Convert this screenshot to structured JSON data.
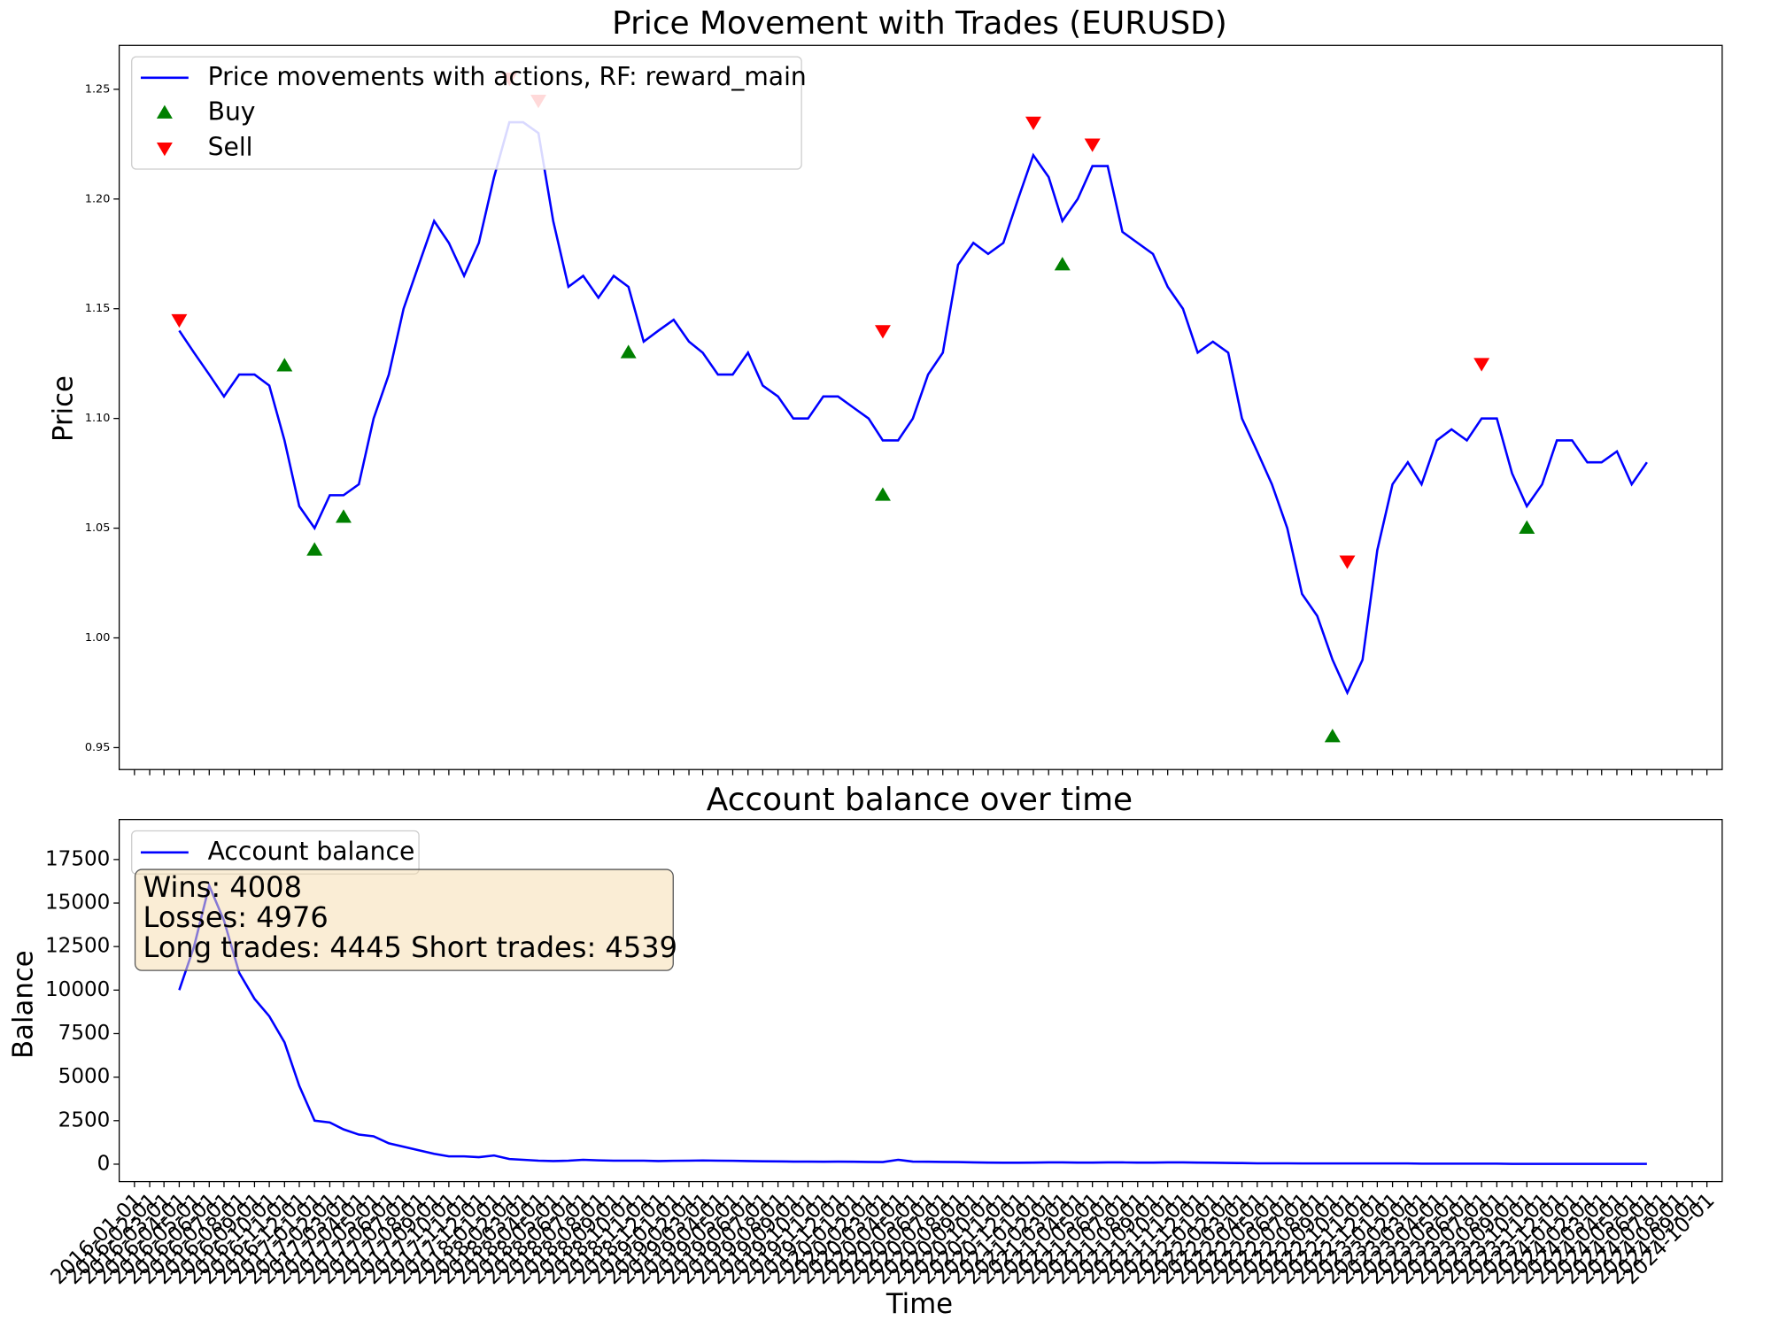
{
  "chart_data": [
    {
      "type": "line",
      "title": "Price Movement with Trades (EURUSD)",
      "ylabel": "Price",
      "legend": "upper left",
      "xlim": [
        "2015-12-01",
        "2024-11-01"
      ],
      "ylim": [
        0.94,
        1.27
      ],
      "yticks": [
        0.95,
        {
          "value": 1,
          "label": "1.00"
        },
        1.05,
        {
          "value": 1.1,
          "label": "1.10"
        },
        1.15,
        {
          "value": 1.2,
          "label": "1.20"
        },
        1.25
      ],
      "series": [
        {
          "name": "Price movements with actions, RF: reward_main",
          "kind": "line",
          "color": "#0000ff",
          "x": [
            "2016-04-01",
            "2016-05-01",
            "2016-06-01",
            "2016-07-01",
            "2016-08-01",
            "2016-09-01",
            "2016-10-01",
            "2016-11-01",
            "2016-12-01",
            "2017-01-01",
            "2017-02-01",
            "2017-03-01",
            "2017-04-01",
            "2017-05-01",
            "2017-06-01",
            "2017-07-01",
            "2017-08-01",
            "2017-09-01",
            "2017-10-01",
            "2017-11-01",
            "2017-12-01",
            "2018-01-01",
            "2018-02-01",
            "2018-03-01",
            "2018-04-01",
            "2018-05-01",
            "2018-06-01",
            "2018-07-01",
            "2018-08-01",
            "2018-09-01",
            "2018-10-01",
            "2018-11-01",
            "2018-12-01",
            "2019-01-01",
            "2019-02-01",
            "2019-03-01",
            "2019-04-01",
            "2019-05-01",
            "2019-06-01",
            "2019-07-01",
            "2019-08-01",
            "2019-09-01",
            "2019-10-01",
            "2019-11-01",
            "2019-12-01",
            "2020-01-01",
            "2020-02-01",
            "2020-03-01",
            "2020-04-01",
            "2020-05-01",
            "2020-06-01",
            "2020-07-01",
            "2020-08-01",
            "2020-09-01",
            "2020-10-01",
            "2020-11-01",
            "2020-12-01",
            "2021-01-01",
            "2021-02-01",
            "2021-03-01",
            "2021-04-01",
            "2021-05-01",
            "2021-06-01",
            "2021-07-01",
            "2021-08-01",
            "2021-09-01",
            "2021-10-01",
            "2021-11-01",
            "2021-12-01",
            "2022-01-01",
            "2022-02-01",
            "2022-03-01",
            "2022-04-01",
            "2022-05-01",
            "2022-06-01",
            "2022-07-01",
            "2022-08-01",
            "2022-09-01",
            "2022-10-01",
            "2022-11-01",
            "2022-12-01",
            "2023-01-01",
            "2023-02-01",
            "2023-03-01",
            "2023-04-01",
            "2023-05-01",
            "2023-06-01",
            "2023-07-01",
            "2023-08-01",
            "2023-09-01",
            "2023-10-01",
            "2023-11-01",
            "2023-12-01",
            "2024-01-01",
            "2024-02-01",
            "2024-03-01",
            "2024-04-01",
            "2024-05-01",
            "2024-06-01"
          ],
          "values": [
            1.14,
            1.13,
            1.12,
            1.11,
            1.12,
            1.12,
            1.115,
            1.09,
            1.06,
            1.05,
            1.065,
            1.065,
            1.07,
            1.1,
            1.12,
            1.15,
            1.17,
            1.19,
            1.18,
            1.165,
            1.18,
            1.21,
            1.235,
            1.235,
            1.23,
            1.19,
            1.16,
            1.165,
            1.155,
            1.165,
            1.16,
            1.135,
            1.14,
            1.145,
            1.135,
            1.13,
            1.12,
            1.12,
            1.13,
            1.115,
            1.11,
            1.1,
            1.1,
            1.11,
            1.11,
            1.105,
            1.1,
            1.09,
            1.09,
            1.1,
            1.12,
            1.13,
            1.17,
            1.18,
            1.175,
            1.18,
            1.2,
            1.22,
            1.21,
            1.19,
            1.2,
            1.215,
            1.215,
            1.185,
            1.18,
            1.175,
            1.16,
            1.15,
            1.13,
            1.135,
            1.13,
            1.1,
            1.085,
            1.07,
            1.05,
            1.02,
            1.01,
            0.99,
            0.975,
            0.99,
            1.04,
            1.07,
            1.08,
            1.07,
            1.09,
            1.095,
            1.09,
            1.1,
            1.1,
            1.075,
            1.06,
            1.07,
            1.09,
            1.09,
            1.08,
            1.08,
            1.085,
            1.07,
            1.08
          ]
        },
        {
          "name": "Buy",
          "kind": "scatter-up",
          "color": "#008000",
          "x": [
            "2016-11-01",
            "2017-01-01",
            "2017-03-01",
            "2018-10-01",
            "2020-03-01",
            "2021-03-01",
            "2022-09-01",
            "2023-10-01"
          ],
          "values": [
            1.124,
            1.04,
            1.055,
            1.13,
            1.065,
            1.17,
            0.955,
            1.05
          ]
        },
        {
          "name": "Sell",
          "kind": "scatter-down",
          "color": "#ff0000",
          "x": [
            "2016-04-01",
            "2018-02-01",
            "2018-04-01",
            "2020-03-01",
            "2021-01-01",
            "2021-05-01",
            "2022-10-01",
            "2023-07-01"
          ],
          "values": [
            1.145,
            1.255,
            1.245,
            1.14,
            1.235,
            1.225,
            1.035,
            1.125
          ]
        }
      ]
    },
    {
      "type": "line",
      "title": "Account balance over time",
      "ylabel": "Balance",
      "xlabel": "Time",
      "legend": "upper left",
      "xlim": [
        "2015-12-01",
        "2024-11-01"
      ],
      "ylim": [
        -1000,
        19800
      ],
      "yticks": [
        0,
        2500,
        5000,
        7500,
        10000,
        12500,
        15000,
        17500
      ],
      "xticks": [
        "2016-01-01",
        "2016-02-01",
        "2016-03-01",
        "2016-04-01",
        "2016-05-01",
        "2016-06-01",
        "2016-07-01",
        "2016-08-01",
        "2016-09-01",
        "2016-10-01",
        "2016-11-01",
        "2016-12-01",
        "2017-01-01",
        "2017-02-01",
        "2017-03-01",
        "2017-04-01",
        "2017-05-01",
        "2017-06-01",
        "2017-07-01",
        "2017-08-01",
        "2017-09-01",
        "2017-10-01",
        "2017-11-01",
        "2017-12-01",
        "2018-01-01",
        "2018-02-01",
        "2018-03-01",
        "2018-04-01",
        "2018-05-01",
        "2018-06-01",
        "2018-07-01",
        "2018-08-01",
        "2018-09-01",
        "2018-10-01",
        "2018-11-01",
        "2018-12-01",
        "2019-01-01",
        "2019-02-01",
        "2019-03-01",
        "2019-04-01",
        "2019-05-01",
        "2019-06-01",
        "2019-07-01",
        "2019-08-01",
        "2019-09-01",
        "2019-10-01",
        "2019-11-01",
        "2019-12-01",
        "2020-01-01",
        "2020-02-01",
        "2020-03-01",
        "2020-04-01",
        "2020-05-01",
        "2020-06-01",
        "2020-07-01",
        "2020-08-01",
        "2020-09-01",
        "2020-10-01",
        "2020-11-01",
        "2020-12-01",
        "2021-01-01",
        "2021-02-01",
        "2021-03-01",
        "2021-04-01",
        "2021-05-01",
        "2021-06-01",
        "2021-07-01",
        "2021-08-01",
        "2021-09-01",
        "2021-10-01",
        "2021-11-01",
        "2021-12-01",
        "2022-01-01",
        "2022-02-01",
        "2022-03-01",
        "2022-04-01",
        "2022-05-01",
        "2022-06-01",
        "2022-07-01",
        "2022-08-01",
        "2022-09-01",
        "2022-10-01",
        "2022-11-01",
        "2022-12-01",
        "2023-01-01",
        "2023-02-01",
        "2023-03-01",
        "2023-04-01",
        "2023-05-01",
        "2023-06-01",
        "2023-07-01",
        "2023-08-01",
        "2023-09-01",
        "2023-10-01",
        "2023-11-01",
        "2023-12-01",
        "2024-01-01",
        "2024-02-01",
        "2024-03-01",
        "2024-04-01",
        "2024-05-01",
        "2024-06-01",
        "2024-07-01",
        "2024-08-01",
        "2024-09-01",
        "2024-10-01"
      ],
      "annotation": [
        "Wins: 4008",
        "Losses: 4976",
        "Long trades: 4445 Short trades: 4539"
      ],
      "series": [
        {
          "name": "Account balance",
          "kind": "line",
          "color": "#0000ff",
          "x": [
            "2016-04-01",
            "2016-05-01",
            "2016-06-01",
            "2016-07-01",
            "2016-08-01",
            "2016-09-01",
            "2016-10-01",
            "2016-11-01",
            "2016-12-01",
            "2017-01-01",
            "2017-02-01",
            "2017-03-01",
            "2017-04-01",
            "2017-05-01",
            "2017-06-01",
            "2017-07-01",
            "2017-08-01",
            "2017-09-01",
            "2017-10-01",
            "2017-11-01",
            "2017-12-01",
            "2018-01-01",
            "2018-02-01",
            "2018-03-01",
            "2018-04-01",
            "2018-05-01",
            "2018-06-01",
            "2018-07-01",
            "2018-08-01",
            "2018-09-01",
            "2018-10-01",
            "2018-11-01",
            "2018-12-01",
            "2019-01-01",
            "2019-02-01",
            "2019-03-01",
            "2019-04-01",
            "2019-05-01",
            "2019-06-01",
            "2019-07-01",
            "2019-08-01",
            "2019-09-01",
            "2019-10-01",
            "2019-11-01",
            "2019-12-01",
            "2020-01-01",
            "2020-02-01",
            "2020-03-01",
            "2020-04-01",
            "2020-05-01",
            "2020-06-01",
            "2020-07-01",
            "2020-08-01",
            "2020-09-01",
            "2020-10-01",
            "2020-11-01",
            "2020-12-01",
            "2021-01-01",
            "2021-02-01",
            "2021-03-01",
            "2021-04-01",
            "2021-05-01",
            "2021-06-01",
            "2021-07-01",
            "2021-08-01",
            "2021-09-01",
            "2021-10-01",
            "2021-11-01",
            "2021-12-01",
            "2022-01-01",
            "2022-02-01",
            "2022-03-01",
            "2022-04-01",
            "2022-05-01",
            "2022-06-01",
            "2022-07-01",
            "2022-08-01",
            "2022-09-01",
            "2022-10-01",
            "2022-11-01",
            "2022-12-01",
            "2023-01-01",
            "2023-02-01",
            "2023-03-01",
            "2023-04-01",
            "2023-05-01",
            "2023-06-01",
            "2023-07-01",
            "2023-08-01",
            "2023-09-01",
            "2023-10-01",
            "2023-11-01",
            "2023-12-01",
            "2024-01-01",
            "2024-02-01",
            "2024-03-01",
            "2024-04-01",
            "2024-05-01",
            "2024-06-01"
          ],
          "values": [
            10000,
            12500,
            16000,
            14000,
            11000,
            9500,
            8500,
            7000,
            4500,
            2500,
            2400,
            2000,
            1700,
            1600,
            1200,
            1000,
            800,
            600,
            450,
            450,
            400,
            500,
            300,
            250,
            200,
            180,
            200,
            250,
            220,
            200,
            200,
            200,
            180,
            190,
            200,
            210,
            200,
            190,
            180,
            170,
            160,
            150,
            150,
            140,
            150,
            140,
            130,
            120,
            250,
            150,
            140,
            130,
            120,
            100,
            90,
            80,
            80,
            90,
            100,
            100,
            90,
            90,
            100,
            100,
            90,
            90,
            100,
            100,
            90,
            80,
            70,
            60,
            50,
            50,
            50,
            40,
            40,
            40,
            40,
            40,
            40,
            40,
            40,
            30,
            30,
            30,
            30,
            30,
            30,
            20,
            20,
            20,
            20,
            20,
            20,
            20,
            20,
            20,
            20
          ]
        }
      ]
    }
  ]
}
